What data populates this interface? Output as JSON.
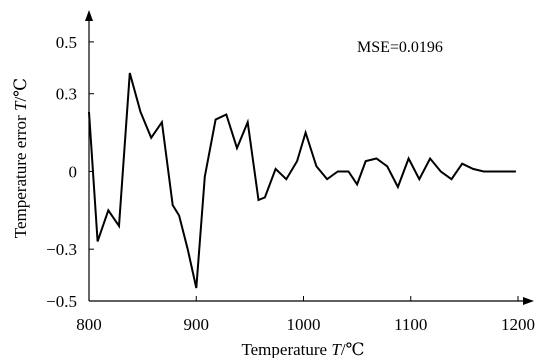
{
  "chart_data": {
    "type": "line",
    "title": "",
    "xlabel": "Temperature T/℃",
    "ylabel": "Temperature error T/℃",
    "xlabel_parts": [
      "Temperature ",
      "T",
      "/℃"
    ],
    "ylabel_parts": [
      "Temperature error ",
      "T",
      "/℃"
    ],
    "annotation": "MSE=0.0196",
    "xlim": [
      800,
      1200
    ],
    "ylim": [
      -0.5,
      0.6
    ],
    "x_ticks": [
      800,
      900,
      1000,
      1100,
      1200
    ],
    "x_tick_labels": [
      "800",
      "900",
      "1000",
      "1100",
      "1200"
    ],
    "y_ticks": [
      -0.5,
      -0.3,
      0,
      0.3,
      0.5
    ],
    "y_tick_labels": [
      "−0.5",
      "−0.3",
      "0",
      "0.3",
      "0.5"
    ],
    "grid": false,
    "line_color": "#000000",
    "series": [
      {
        "x": [
          800,
          808,
          818,
          828,
          838,
          848,
          858,
          868,
          878,
          884,
          892,
          900,
          908,
          918,
          928,
          938,
          948,
          958,
          964,
          974,
          984,
          994,
          1002,
          1012,
          1022,
          1032,
          1042,
          1050,
          1058,
          1068,
          1078,
          1088,
          1098,
          1108,
          1118,
          1128,
          1138,
          1148,
          1158,
          1168,
          1178,
          1188,
          1198
        ],
        "y": [
          0.23,
          -0.27,
          -0.15,
          -0.21,
          0.38,
          0.23,
          0.13,
          0.19,
          -0.13,
          -0.17,
          -0.3,
          -0.45,
          -0.02,
          0.2,
          0.22,
          0.09,
          0.19,
          -0.11,
          -0.1,
          0.01,
          -0.03,
          0.04,
          0.15,
          0.02,
          -0.03,
          0.0,
          0.0,
          -0.05,
          0.04,
          0.05,
          0.02,
          -0.06,
          0.05,
          -0.03,
          0.05,
          0.0,
          -0.03,
          0.03,
          0.01,
          0.0,
          0.0,
          0.0,
          0.0
        ]
      }
    ]
  }
}
